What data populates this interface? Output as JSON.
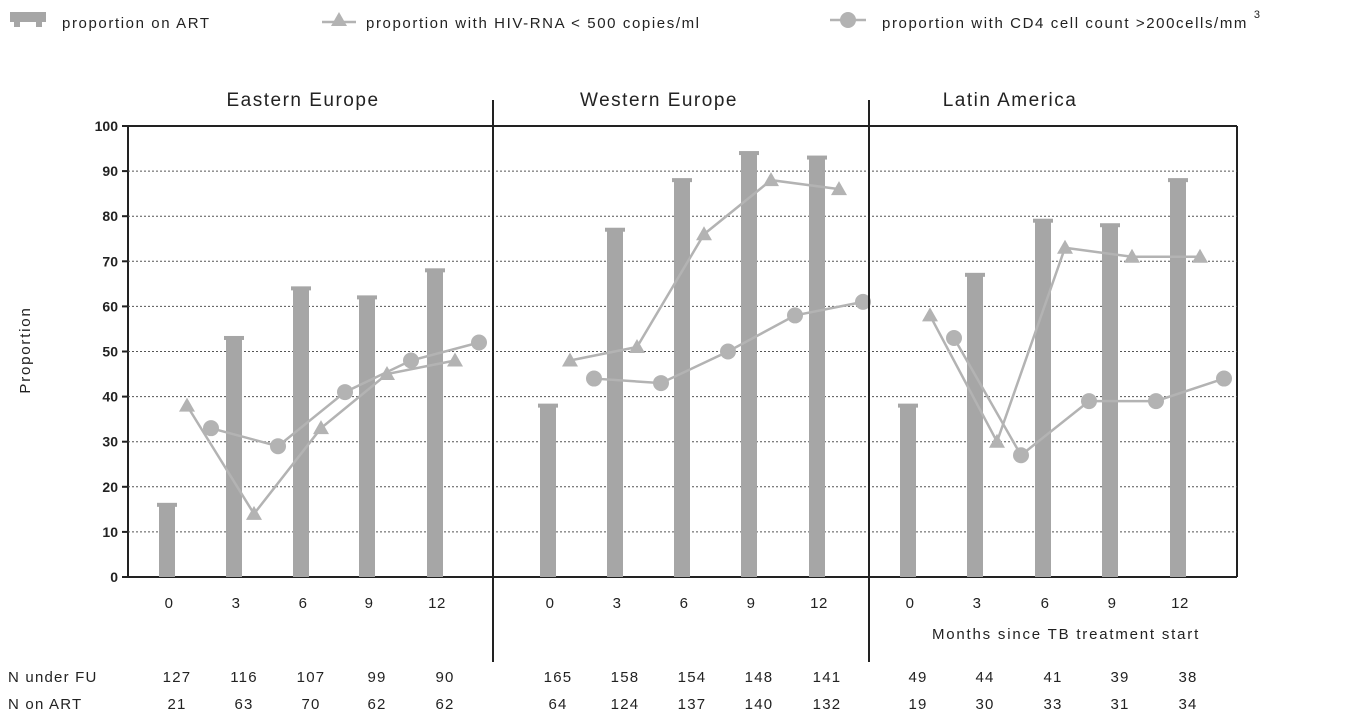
{
  "legend": {
    "art": "proportion on ART",
    "rna": "proportion with HIV-RNA < 500 copies/ml",
    "cd4": "proportion with CD4 cell count  >200cells/mm",
    "cd4_sup": "3"
  },
  "axis": {
    "ylabel": "Proportion",
    "xlabel": "Months since TB treatment start",
    "yticks": [
      "0",
      "10",
      "20",
      "30",
      "40",
      "50",
      "60",
      "70",
      "80",
      "90",
      "100"
    ]
  },
  "table": {
    "under_fu_label": "N under FU",
    "on_art_label": "N on ART"
  },
  "colors": {
    "bar": "#a6a6a6",
    "line": "#b3b3b3",
    "grid": "#555555"
  },
  "chart_data": {
    "type": "bar",
    "ylim": [
      0,
      100
    ],
    "ylabel": "Proportion",
    "xlabel": "Months since TB treatment start",
    "categories": [
      "0",
      "3",
      "6",
      "9",
      "12"
    ],
    "legend_placement": "top",
    "grid": true,
    "panels": [
      {
        "title": "Eastern Europe",
        "art": [
          16,
          53,
          64,
          62,
          68
        ],
        "rna": [
          38,
          14,
          33,
          45,
          48
        ],
        "cd4": [
          33,
          29,
          41,
          48,
          52
        ],
        "n_under_fu": [
          "127",
          "116",
          "107",
          "99",
          "90"
        ],
        "n_on_art": [
          "21",
          "63",
          "70",
          "62",
          "62"
        ]
      },
      {
        "title": "Western Europe",
        "art": [
          38,
          77,
          88,
          94,
          93
        ],
        "rna": [
          48,
          51,
          76,
          88,
          86
        ],
        "cd4": [
          44,
          43,
          50,
          58,
          61
        ],
        "n_under_fu": [
          "165",
          "158",
          "154",
          "148",
          "141"
        ],
        "n_on_art": [
          "64",
          "124",
          "137",
          "140",
          "132"
        ]
      },
      {
        "title": "Latin America",
        "art": [
          38,
          67,
          79,
          78,
          88
        ],
        "rna": [
          58,
          30,
          73,
          71,
          71
        ],
        "cd4": [
          53,
          27,
          39,
          39,
          44
        ],
        "n_under_fu": [
          "49",
          "44",
          "41",
          "39",
          "38"
        ],
        "n_on_art": [
          "19",
          "30",
          "33",
          "31",
          "34"
        ]
      }
    ]
  }
}
